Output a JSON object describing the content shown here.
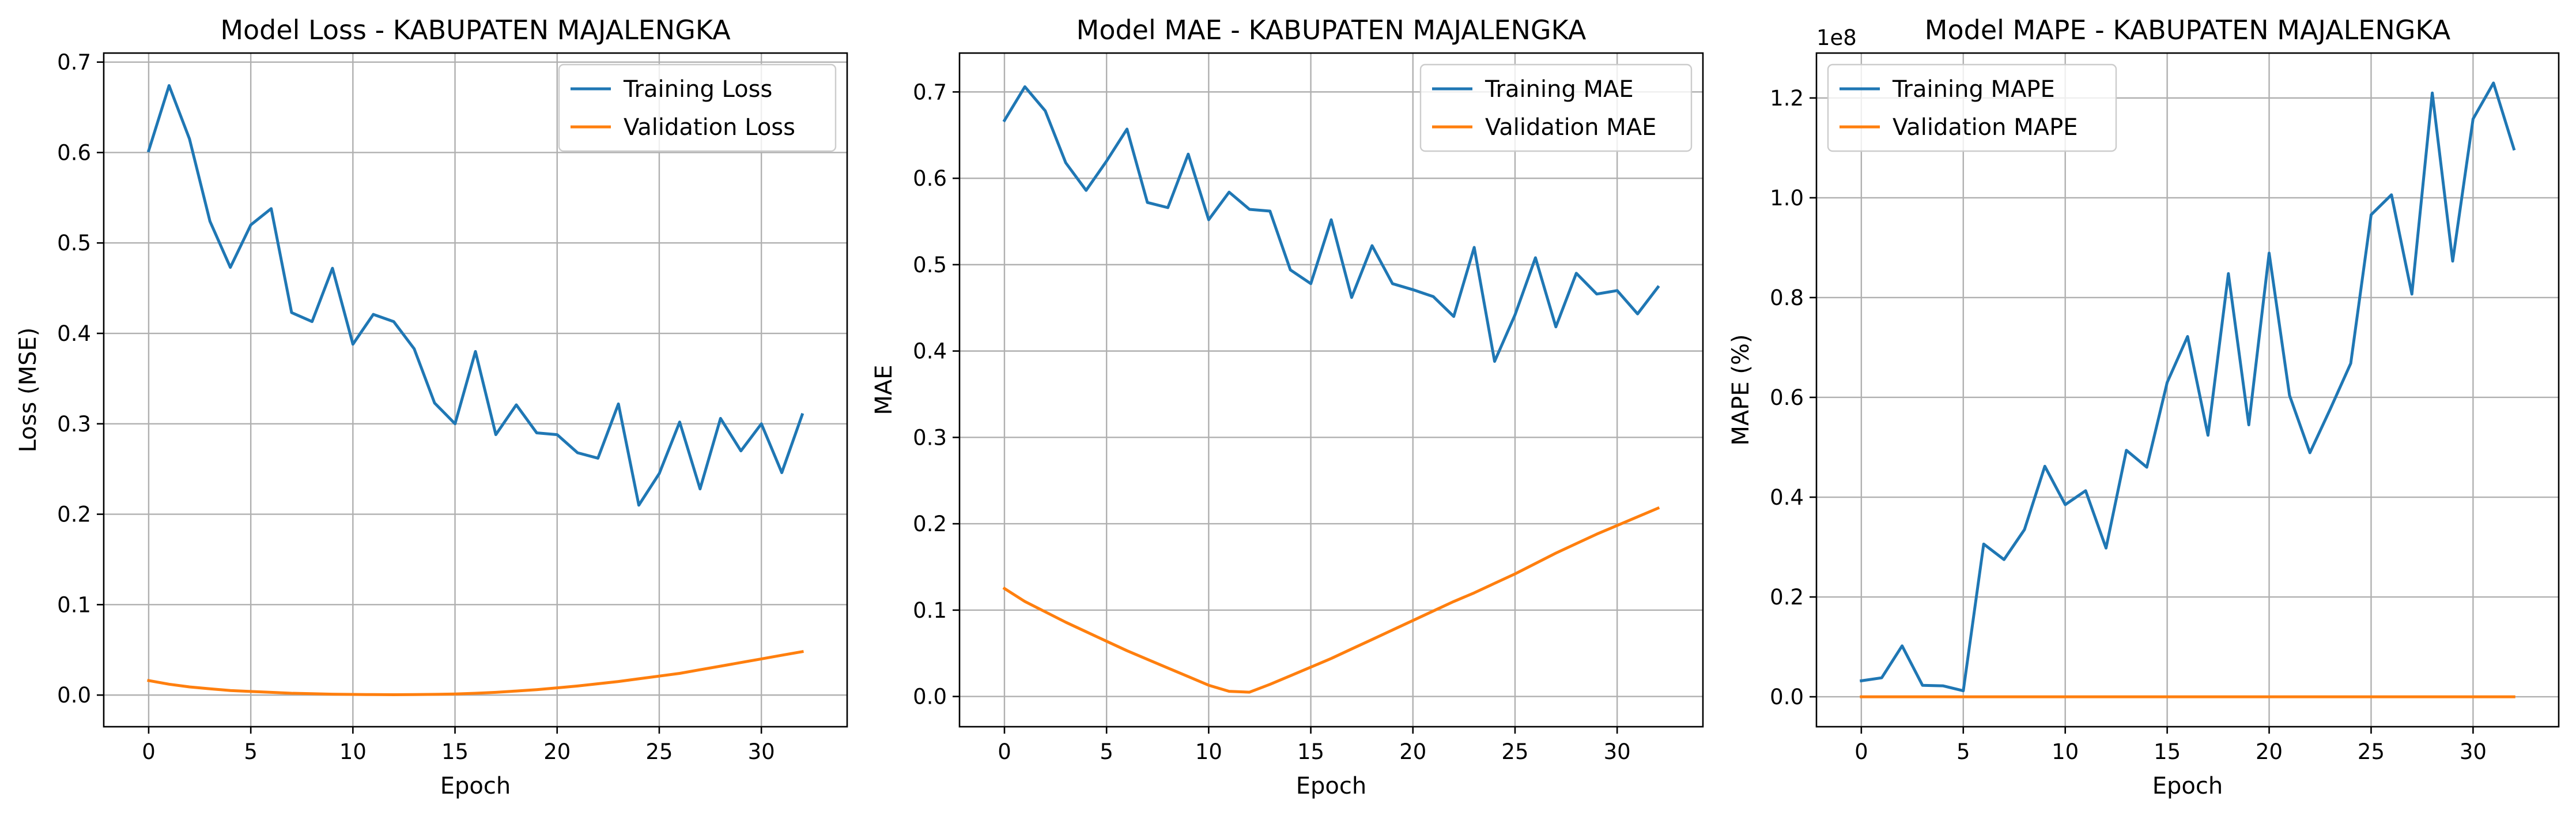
{
  "chart_data": [
    {
      "type": "line",
      "title": "Model Loss - KABUPATEN MAJALENGKA",
      "xlabel": "Epoch",
      "ylabel": "Loss (MSE)",
      "xlim": [
        -2.2,
        34.2
      ],
      "ylim": [
        -0.035,
        0.71
      ],
      "xticks": [
        0,
        5,
        10,
        15,
        20,
        25,
        30
      ],
      "yticks": [
        0.0,
        0.1,
        0.2,
        0.3,
        0.4,
        0.5,
        0.6,
        0.7
      ],
      "ytick_labels": [
        "0.0",
        "0.1",
        "0.2",
        "0.3",
        "0.4",
        "0.5",
        "0.6",
        "0.7"
      ],
      "offset_text": "",
      "grid": true,
      "legend": "top-right",
      "series": [
        {
          "name": "Training Loss",
          "color": "#1f77b4",
          "values": [
            0.602,
            0.674,
            0.615,
            0.524,
            0.473,
            0.52,
            0.538,
            0.423,
            0.413,
            0.472,
            0.388,
            0.421,
            0.413,
            0.383,
            0.323,
            0.3,
            0.38,
            0.288,
            0.321,
            0.29,
            0.288,
            0.268,
            0.262,
            0.322,
            0.21,
            0.245,
            0.302,
            0.228,
            0.306,
            0.27,
            0.3,
            0.246,
            0.31
          ]
        },
        {
          "name": "Validation Loss",
          "color": "#ff7f0e",
          "values": [
            0.016,
            0.012,
            0.009,
            0.007,
            0.005,
            0.004,
            0.003,
            0.002,
            0.0015,
            0.001,
            0.0007,
            0.0005,
            0.0004,
            0.0005,
            0.0008,
            0.0012,
            0.002,
            0.003,
            0.0045,
            0.006,
            0.008,
            0.01,
            0.0125,
            0.015,
            0.018,
            0.021,
            0.024,
            0.028,
            0.032,
            0.036,
            0.04,
            0.044,
            0.048
          ]
        }
      ]
    },
    {
      "type": "line",
      "title": "Model MAE - KABUPATEN MAJALENGKA",
      "xlabel": "Epoch",
      "ylabel": "MAE",
      "xlim": [
        -2.2,
        34.2
      ],
      "ylim": [
        -0.035,
        0.745
      ],
      "xticks": [
        0,
        5,
        10,
        15,
        20,
        25,
        30
      ],
      "yticks": [
        0.0,
        0.1,
        0.2,
        0.3,
        0.4,
        0.5,
        0.6,
        0.7
      ],
      "ytick_labels": [
        "0.0",
        "0.1",
        "0.2",
        "0.3",
        "0.4",
        "0.5",
        "0.6",
        "0.7"
      ],
      "offset_text": "",
      "grid": true,
      "legend": "top-right",
      "series": [
        {
          "name": "Training MAE",
          "color": "#1f77b4",
          "values": [
            0.667,
            0.706,
            0.678,
            0.618,
            0.586,
            0.62,
            0.657,
            0.572,
            0.566,
            0.628,
            0.552,
            0.584,
            0.564,
            0.562,
            0.494,
            0.478,
            0.552,
            0.462,
            0.522,
            0.478,
            0.471,
            0.463,
            0.44,
            0.52,
            0.388,
            0.442,
            0.508,
            0.428,
            0.49,
            0.466,
            0.47,
            0.443,
            0.474
          ]
        },
        {
          "name": "Validation MAE",
          "color": "#ff7f0e",
          "values": [
            0.125,
            0.11,
            0.098,
            0.086,
            0.075,
            0.064,
            0.053,
            0.043,
            0.033,
            0.023,
            0.013,
            0.006,
            0.005,
            0.014,
            0.024,
            0.034,
            0.044,
            0.055,
            0.066,
            0.077,
            0.088,
            0.099,
            0.11,
            0.12,
            0.131,
            0.142,
            0.154,
            0.166,
            0.177,
            0.188,
            0.198,
            0.208,
            0.218
          ]
        }
      ]
    },
    {
      "type": "line",
      "title": "Model MAPE - KABUPATEN MAJALENGKA",
      "xlabel": "Epoch",
      "ylabel": "MAPE (%)",
      "xlim": [
        -2.2,
        34.2
      ],
      "ylim": [
        -6000000,
        129000000
      ],
      "xticks": [
        0,
        5,
        10,
        15,
        20,
        25,
        30
      ],
      "yticks": [
        0,
        20000000,
        40000000,
        60000000,
        80000000,
        100000000,
        120000000
      ],
      "ytick_labels": [
        "0.0",
        "0.2",
        "0.4",
        "0.6",
        "0.8",
        "1.0",
        "1.2"
      ],
      "offset_text": "1e8",
      "grid": true,
      "legend": "top-left",
      "series": [
        {
          "name": "Training MAPE",
          "color": "#1f77b4",
          "values": [
            3200000,
            3800000,
            10200000,
            2300000,
            2200000,
            1200000,
            30600000,
            27500000,
            33500000,
            46200000,
            38500000,
            41300000,
            29800000,
            49400000,
            46000000,
            63000000,
            72200000,
            52400000,
            84800000,
            54500000,
            88900000,
            60400000,
            48900000,
            57700000,
            66800000,
            96600000,
            100600000,
            80700000,
            121000000,
            87300000,
            115800000,
            123000000,
            109800000
          ]
        },
        {
          "name": "Validation MAPE",
          "color": "#ff7f0e",
          "values": [
            0,
            0,
            0,
            0,
            0,
            0,
            0,
            0,
            0,
            0,
            0,
            0,
            0,
            0,
            0,
            0,
            0,
            0,
            0,
            0,
            0,
            0,
            0,
            0,
            0,
            0,
            0,
            0,
            0,
            0,
            0,
            0,
            0
          ]
        }
      ]
    }
  ]
}
